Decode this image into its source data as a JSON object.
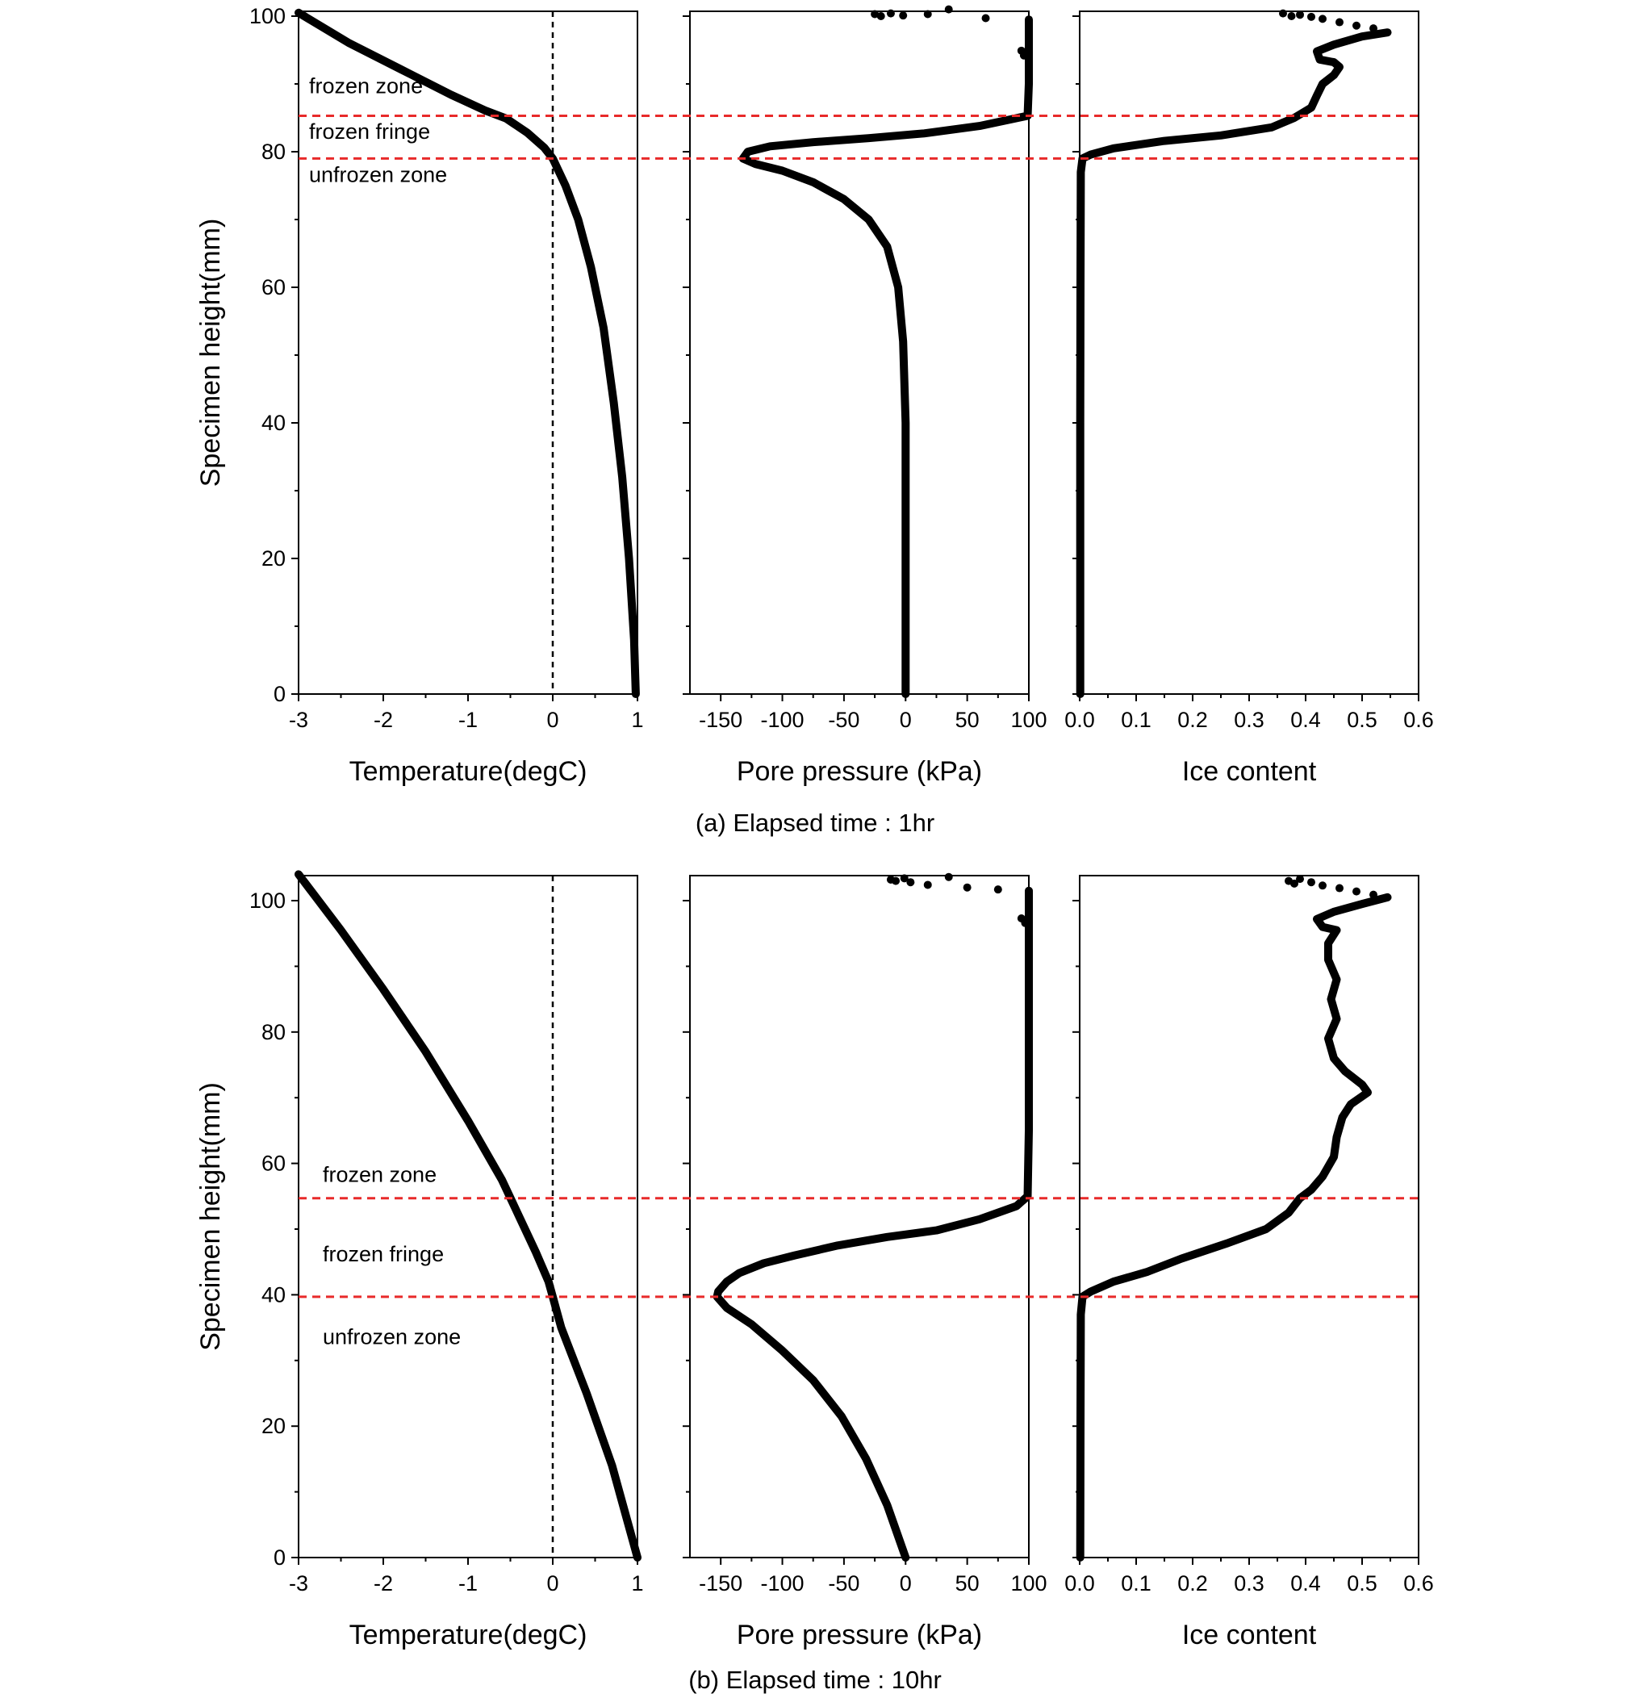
{
  "chart_data": [
    {
      "type": "line",
      "caption": "(a)  Elapsed time : 1hr",
      "ylabel": "Specimen height(mm)",
      "yticks": [
        "0",
        "20",
        "40",
        "60",
        "80",
        "100"
      ],
      "ylim": [
        0,
        100
      ],
      "boundaries": [
        85.3,
        79.0
      ],
      "zone_labels": [
        {
          "text": "frozen zone",
          "y": 89.7
        },
        {
          "text": "frozen fringe",
          "y": 83.0
        },
        {
          "text": "unfrozen zone",
          "y": 76.6
        }
      ],
      "panels": [
        {
          "xlabel": "Temperature(degC)",
          "xlim": [
            -3,
            1
          ],
          "xticks": [
            "-3",
            "-2",
            "-1",
            "0",
            "1"
          ],
          "zero_line": 0,
          "series": [
            {
              "points": [
                [
                  -3,
                  100.5
                ],
                [
                  -2.4,
                  96.0
                ],
                [
                  -1.8,
                  92.2
                ],
                [
                  -1.2,
                  88.4
                ],
                [
                  -0.8,
                  86.1
                ],
                [
                  -0.55,
                  84.9
                ],
                [
                  -0.3,
                  82.8
                ],
                [
                  -0.1,
                  80.6
                ],
                [
                  0,
                  79.0
                ],
                [
                  0.15,
                  75.0
                ],
                [
                  0.3,
                  70.0
                ],
                [
                  0.45,
                  63.0
                ],
                [
                  0.6,
                  54.0
                ],
                [
                  0.72,
                  43.0
                ],
                [
                  0.82,
                  32.0
                ],
                [
                  0.9,
                  20.0
                ],
                [
                  0.96,
                  8.0
                ],
                [
                  0.98,
                  0
                ]
              ]
            }
          ],
          "scatter": []
        },
        {
          "xlabel": "Pore pressure (kPa)",
          "xlim": [
            -175,
            100
          ],
          "xticks": [
            "-150",
            "-100",
            "-50",
            "0",
            "50",
            "100"
          ],
          "series": [
            {
              "points": [
                [
                  100,
                  99.5
                ],
                [
                  100,
                  95.0
                ],
                [
                  100,
                  90.0
                ],
                [
                  99,
                  85.3
                ],
                [
                  60,
                  83.8
                ],
                [
                  15,
                  82.7
                ],
                [
                  -30,
                  82.0
                ],
                [
                  -75,
                  81.4
                ],
                [
                  -110,
                  80.8
                ],
                [
                  -128,
                  80.0
                ],
                [
                  -132,
                  79.0
                ],
                [
                  -122,
                  78.2
                ],
                [
                  -100,
                  77.2
                ],
                [
                  -75,
                  75.5
                ],
                [
                  -50,
                  73.0
                ],
                [
                  -30,
                  70.0
                ],
                [
                  -15,
                  66.0
                ],
                [
                  -6,
                  60.0
                ],
                [
                  -2,
                  52.0
                ],
                [
                  0,
                  40.0
                ],
                [
                  0,
                  20.0
                ],
                [
                  0,
                  0
                ]
              ]
            }
          ],
          "scatter": [
            [
              -25,
              100.3
            ],
            [
              -20,
              100.0
            ],
            [
              -12,
              100.4
            ],
            [
              -2,
              100.1
            ],
            [
              18,
              100.3
            ],
            [
              35,
              101.0
            ],
            [
              65,
              99.7
            ],
            [
              94,
              94.9
            ],
            [
              96,
              94.2
            ]
          ]
        },
        {
          "xlabel": "Ice content",
          "xlim": [
            0,
            0.6
          ],
          "xticks": [
            "0.0",
            "0.1",
            "0.2",
            "0.3",
            "0.4",
            "0.5",
            "0.6"
          ],
          "series": [
            {
              "points": [
                [
                  0.545,
                  97.6
                ],
                [
                  0.5,
                  97.0
                ],
                [
                  0.45,
                  95.8
                ],
                [
                  0.42,
                  94.8
                ],
                [
                  0.425,
                  93.6
                ],
                [
                  0.45,
                  93.2
                ],
                [
                  0.46,
                  92.5
                ],
                [
                  0.45,
                  91.3
                ],
                [
                  0.43,
                  90.0
                ],
                [
                  0.42,
                  88.3
                ],
                [
                  0.41,
                  86.5
                ],
                [
                  0.38,
                  85.0
                ],
                [
                  0.34,
                  83.6
                ],
                [
                  0.25,
                  82.4
                ],
                [
                  0.15,
                  81.6
                ],
                [
                  0.06,
                  80.5
                ],
                [
                  0.02,
                  79.6
                ],
                [
                  0.005,
                  79.0
                ],
                [
                  0.002,
                  77.0
                ],
                [
                  0.0015,
                  60.0
                ],
                [
                  0.001,
                  40.0
                ],
                [
                  0.001,
                  20.0
                ],
                [
                  0.001,
                  0
                ]
              ]
            }
          ],
          "scatter": [
            [
              0.36,
              100.4
            ],
            [
              0.375,
              100.0
            ],
            [
              0.39,
              100.2
            ],
            [
              0.41,
              99.9
            ],
            [
              0.43,
              99.6
            ],
            [
              0.46,
              99.1
            ],
            [
              0.49,
              98.6
            ],
            [
              0.52,
              98.2
            ]
          ]
        }
      ]
    },
    {
      "type": "line",
      "caption": "(b)  Elapsed time : 10hr",
      "ylabel": "Specimen height(mm)",
      "yticks": [
        "0",
        "20",
        "40",
        "60",
        "80",
        "100"
      ],
      "ylim": [
        0,
        104
      ],
      "boundaries": [
        54.7,
        39.7
      ],
      "zone_labels": [
        {
          "text": "frozen zone",
          "y": 58.3
        },
        {
          "text": "frozen fringe",
          "y": 46.2
        },
        {
          "text": "unfrozen zone",
          "y": 33.6
        }
      ],
      "panels": [
        {
          "xlabel": "Temperature(degC)",
          "xlim": [
            -3,
            1
          ],
          "xticks": [
            "-3",
            "-2",
            "-1",
            "0",
            "1"
          ],
          "zero_line": 0,
          "series": [
            {
              "points": [
                [
                  -3,
                  104.0
                ],
                [
                  -2.5,
                  95.5
                ],
                [
                  -2.0,
                  86.5
                ],
                [
                  -1.5,
                  77.0
                ],
                [
                  -1.0,
                  66.5
                ],
                [
                  -0.6,
                  57.5
                ],
                [
                  -0.4,
                  52.0
                ],
                [
                  -0.2,
                  46.5
                ],
                [
                  -0.05,
                  42.0
                ],
                [
                  0,
                  39.7
                ],
                [
                  0.1,
                  35.0
                ],
                [
                  0.4,
                  25.0
                ],
                [
                  0.7,
                  14.0
                ],
                [
                  1.0,
                  0
                ]
              ]
            }
          ],
          "scatter": []
        },
        {
          "xlabel": "Pore pressure (kPa)",
          "xlim": [
            -175,
            100
          ],
          "xticks": [
            "-150",
            "-100",
            "-50",
            "0",
            "50",
            "100"
          ],
          "series": [
            {
              "points": [
                [
                  100,
                  101.5
                ],
                [
                  100,
                  95.0
                ],
                [
                  100,
                  80.0
                ],
                [
                  100,
                  65.0
                ],
                [
                  99,
                  55.0
                ],
                [
                  90,
                  53.5
                ],
                [
                  60,
                  51.5
                ],
                [
                  25,
                  49.8
                ],
                [
                  -15,
                  48.8
                ],
                [
                  -55,
                  47.5
                ],
                [
                  -90,
                  46.0
                ],
                [
                  -115,
                  44.8
                ],
                [
                  -135,
                  43.3
                ],
                [
                  -145,
                  42.0
                ],
                [
                  -152,
                  40.5
                ],
                [
                  -153,
                  39.7
                ],
                [
                  -145,
                  38.0
                ],
                [
                  -125,
                  35.5
                ],
                [
                  -100,
                  31.5
                ],
                [
                  -75,
                  27.0
                ],
                [
                  -52,
                  21.5
                ],
                [
                  -32,
                  15.0
                ],
                [
                  -15,
                  8.0
                ],
                [
                  0,
                  0
                ]
              ]
            }
          ],
          "scatter": [
            [
              -12,
              103.2
            ],
            [
              -8,
              103.0
            ],
            [
              -1,
              103.4
            ],
            [
              4,
              102.8
            ],
            [
              18,
              102.4
            ],
            [
              35,
              103.6
            ],
            [
              50,
              102.0
            ],
            [
              75,
              101.7
            ],
            [
              94,
              97.3
            ],
            [
              97,
              96.6
            ]
          ]
        },
        {
          "xlabel": "Ice content",
          "xlim": [
            0,
            0.6
          ],
          "xticks": [
            "0.0",
            "0.1",
            "0.2",
            "0.3",
            "0.4",
            "0.5",
            "0.6"
          ],
          "series": [
            {
              "points": [
                [
                  0.545,
                  100.5
                ],
                [
                  0.5,
                  99.5
                ],
                [
                  0.45,
                  98.3
                ],
                [
                  0.42,
                  97.2
                ],
                [
                  0.43,
                  96.0
                ],
                [
                  0.455,
                  95.5
                ],
                [
                  0.44,
                  93.5
                ],
                [
                  0.44,
                  91.0
                ],
                [
                  0.455,
                  88.0
                ],
                [
                  0.445,
                  85.0
                ],
                [
                  0.455,
                  82.0
                ],
                [
                  0.44,
                  79.0
                ],
                [
                  0.45,
                  76.0
                ],
                [
                  0.47,
                  74.0
                ],
                [
                  0.5,
                  72.0
                ],
                [
                  0.51,
                  70.8
                ],
                [
                  0.48,
                  69.0
                ],
                [
                  0.465,
                  67.0
                ],
                [
                  0.455,
                  64.0
                ],
                [
                  0.45,
                  61.0
                ],
                [
                  0.43,
                  58.0
                ],
                [
                  0.41,
                  56.0
                ],
                [
                  0.39,
                  54.7
                ],
                [
                  0.37,
                  52.5
                ],
                [
                  0.33,
                  50.0
                ],
                [
                  0.26,
                  47.8
                ],
                [
                  0.18,
                  45.5
                ],
                [
                  0.12,
                  43.5
                ],
                [
                  0.06,
                  42.0
                ],
                [
                  0.02,
                  40.5
                ],
                [
                  0.005,
                  39.7
                ],
                [
                  0.002,
                  37.0
                ],
                [
                  0.0015,
                  20.0
                ],
                [
                  0.001,
                  0
                ]
              ]
            }
          ],
          "scatter": [
            [
              0.37,
              103.0
            ],
            [
              0.38,
              102.6
            ],
            [
              0.39,
              103.3
            ],
            [
              0.41,
              102.8
            ],
            [
              0.43,
              102.3
            ],
            [
              0.46,
              101.9
            ],
            [
              0.49,
              101.4
            ],
            [
              0.52,
              100.9
            ]
          ]
        }
      ]
    }
  ]
}
